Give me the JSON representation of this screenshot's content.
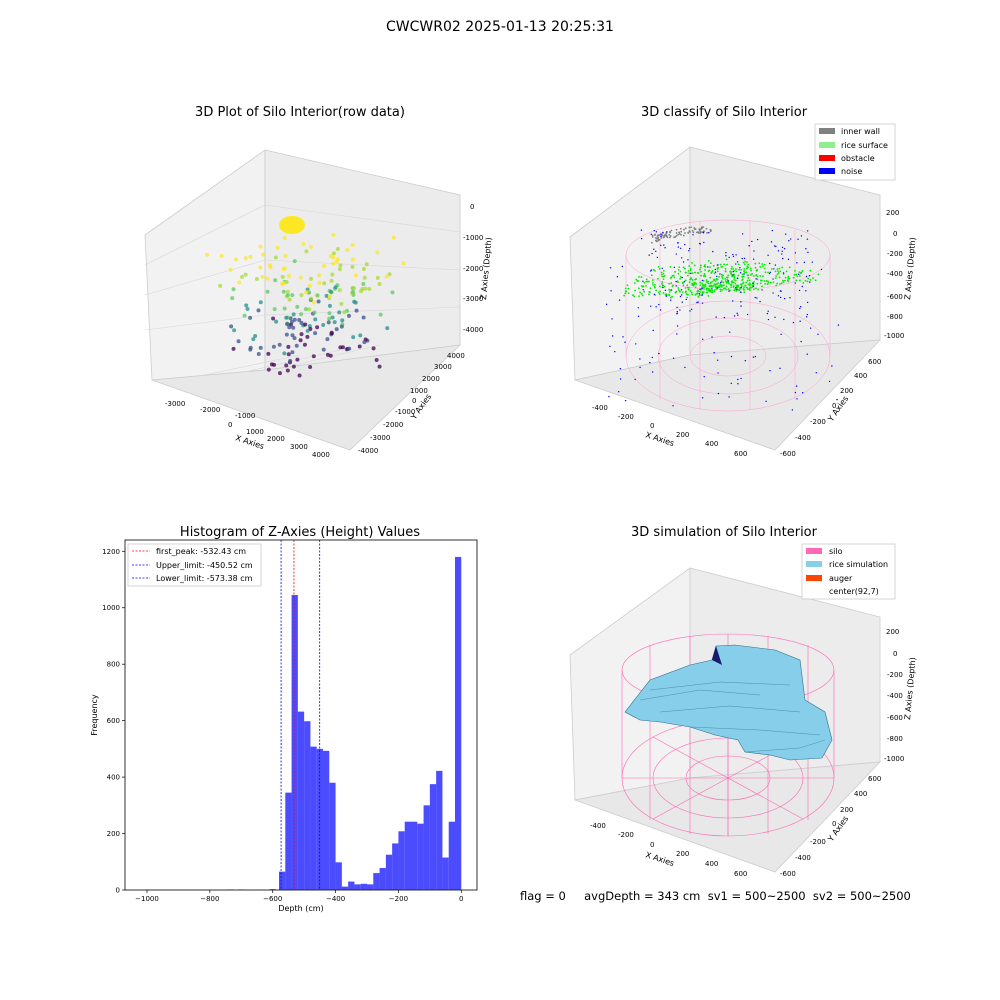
{
  "figure": {
    "title": "CWCWR02 2025-01-13 20:25:31"
  },
  "chart_data": [
    {
      "type": "scatter",
      "title": "3D Plot of Silo Interior(row data)",
      "xlabel": "X Axies",
      "ylabel": "Y Axies",
      "zlabel": "Z Axies (Depth)",
      "x_ticks": [
        "-3000",
        "-2000",
        "-1000",
        "0",
        "1000",
        "2000",
        "3000",
        "4000"
      ],
      "y_ticks": [
        "-4000",
        "-3000",
        "-2000",
        "-1000",
        "0",
        "1000",
        "2000",
        "3000",
        "4000"
      ],
      "z_ticks": [
        "-4000",
        "-3000",
        "-2000",
        "-1000",
        "0"
      ],
      "xlim": [
        -3000,
        4000
      ],
      "ylim": [
        -4000,
        4000
      ],
      "zlim": [
        -4500,
        0
      ],
      "colormap": "viridis (by depth)"
    },
    {
      "type": "scatter",
      "title": "3D classify of Silo Interior",
      "xlabel": "X Axies",
      "ylabel": "Y Axies",
      "zlabel": "Z Axies (Depth)",
      "x_ticks": [
        "-400",
        "-200",
        "0",
        "200",
        "400",
        "600"
      ],
      "y_ticks": [
        "-600",
        "-400",
        "-200",
        "0",
        "200",
        "400",
        "600"
      ],
      "z_ticks": [
        "-1000",
        "-800",
        "-600",
        "-400",
        "-200",
        "0",
        "200"
      ],
      "legend": [
        {
          "label": "inner wall",
          "color": "#808080"
        },
        {
          "label": "rice surface",
          "color": "#90ee90"
        },
        {
          "label": "obstacle",
          "color": "#ff0000"
        },
        {
          "label": "noise",
          "color": "#0000ff"
        }
      ],
      "legend_position": "top-right"
    },
    {
      "type": "bar",
      "title": "Histogram of Z-Axies (Height) Values",
      "xlabel": "Depth (cm)",
      "ylabel": "Frequency",
      "xlim": [
        -1070,
        50
      ],
      "ylim": [
        0,
        1240
      ],
      "x_ticks": [
        -1000,
        -800,
        -600,
        -400,
        -200,
        0
      ],
      "y_ticks": [
        0,
        200,
        400,
        600,
        800,
        1000,
        1200
      ],
      "bar_color": "#0000ff",
      "bins": [
        {
          "x0": -1000,
          "x1": -980,
          "v": 1
        },
        {
          "x0": -980,
          "x1": -960,
          "v": 1
        },
        {
          "x0": -960,
          "x1": -940,
          "v": 1
        },
        {
          "x0": -940,
          "x1": -920,
          "v": 1
        },
        {
          "x0": -920,
          "x1": -900,
          "v": 1
        },
        {
          "x0": -900,
          "x1": -880,
          "v": 1
        },
        {
          "x0": -880,
          "x1": -860,
          "v": 1
        },
        {
          "x0": -860,
          "x1": -840,
          "v": 1
        },
        {
          "x0": -840,
          "x1": -820,
          "v": 1
        },
        {
          "x0": -820,
          "x1": -800,
          "v": 1
        },
        {
          "x0": -745,
          "x1": -725,
          "v": 2
        },
        {
          "x0": -710,
          "x1": -690,
          "v": 2
        },
        {
          "x0": -650,
          "x1": -630,
          "v": 1
        },
        {
          "x0": -610,
          "x1": -590,
          "v": 3
        },
        {
          "x0": -580,
          "x1": -560,
          "v": 65
        },
        {
          "x0": -560,
          "x1": -540,
          "v": 345
        },
        {
          "x0": -540,
          "x1": -520,
          "v": 1045
        },
        {
          "x0": -520,
          "x1": -500,
          "v": 632
        },
        {
          "x0": -500,
          "x1": -480,
          "v": 598
        },
        {
          "x0": -480,
          "x1": -460,
          "v": 508
        },
        {
          "x0": -460,
          "x1": -440,
          "v": 500
        },
        {
          "x0": -440,
          "x1": -420,
          "v": 493
        },
        {
          "x0": -420,
          "x1": -400,
          "v": 380
        },
        {
          "x0": -400,
          "x1": -380,
          "v": 98
        },
        {
          "x0": -380,
          "x1": -360,
          "v": 12
        },
        {
          "x0": -360,
          "x1": -340,
          "v": 30
        },
        {
          "x0": -340,
          "x1": -320,
          "v": 20
        },
        {
          "x0": -320,
          "x1": -300,
          "v": 22
        },
        {
          "x0": -300,
          "x1": -280,
          "v": 20
        },
        {
          "x0": -280,
          "x1": -260,
          "v": 60
        },
        {
          "x0": -260,
          "x1": -240,
          "v": 78
        },
        {
          "x0": -240,
          "x1": -220,
          "v": 125
        },
        {
          "x0": -220,
          "x1": -200,
          "v": 165
        },
        {
          "x0": -200,
          "x1": -180,
          "v": 208
        },
        {
          "x0": -180,
          "x1": -160,
          "v": 242
        },
        {
          "x0": -160,
          "x1": -140,
          "v": 242
        },
        {
          "x0": -140,
          "x1": -120,
          "v": 235
        },
        {
          "x0": -120,
          "x1": -100,
          "v": 300
        },
        {
          "x0": -100,
          "x1": -80,
          "v": 375
        },
        {
          "x0": -80,
          "x1": -60,
          "v": 422
        },
        {
          "x0": -60,
          "x1": -40,
          "v": 115
        },
        {
          "x0": -40,
          "x1": -20,
          "v": 242
        },
        {
          "x0": -20,
          "x1": 0,
          "v": 1180
        }
      ],
      "vlines": [
        {
          "label": "first_peak: -532.43 cm",
          "x": -532.43,
          "color": "#ff0000"
        },
        {
          "label": "Upper_limit: -450.52 cm",
          "x": -450.52,
          "color": "#0000ff"
        },
        {
          "label": "Lower_limit: -573.38 cm",
          "x": -573.38,
          "color": "#0000ff"
        }
      ],
      "legend_position": "top-left"
    },
    {
      "type": "surface",
      "title": "3D simulation of Silo Interior",
      "xlabel": "X Axies",
      "ylabel": "Y Axies",
      "zlabel": "Z Axies (Depth)",
      "x_ticks": [
        "-400",
        "-200",
        "0",
        "200",
        "400",
        "600"
      ],
      "y_ticks": [
        "-600",
        "-400",
        "-200",
        "0",
        "200",
        "400",
        "600"
      ],
      "z_ticks": [
        "-1000",
        "-800",
        "-600",
        "-400",
        "-200",
        "0",
        "200"
      ],
      "legend": [
        {
          "label": "silo",
          "color": "#ff69b4"
        },
        {
          "label": "rice simulation",
          "color": "#87ceeb"
        },
        {
          "label": "auger",
          "color": "#ff4500"
        },
        {
          "label": "center(92,7)",
          "color": "#ffffff"
        }
      ],
      "legend_position": "top-right"
    }
  ],
  "status": "flag = 0     avgDepth = 343 cm  sv1 = 500~2500  sv2 = 500~2500"
}
